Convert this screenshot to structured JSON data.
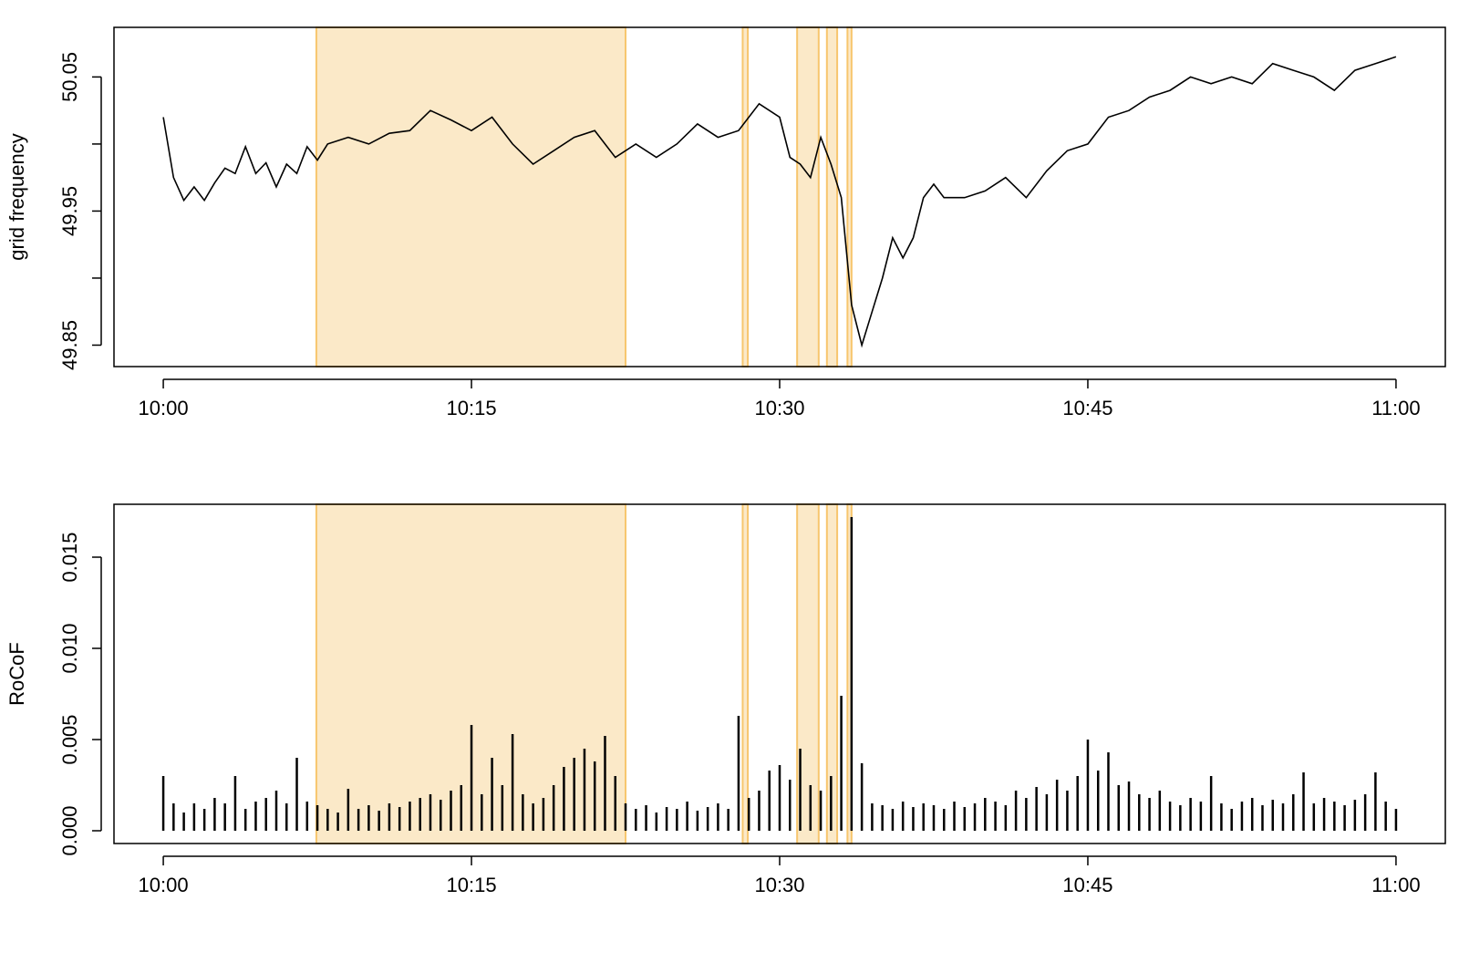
{
  "chart_data": [
    {
      "type": "line",
      "ylabel": "grid frequency",
      "x": [
        0,
        0.5,
        1,
        1.5,
        2,
        2.5,
        3,
        3.5,
        4,
        4.5,
        5,
        5.5,
        6,
        6.5,
        7,
        7.5,
        8,
        9,
        10,
        11,
        12,
        13,
        14,
        15,
        16,
        17,
        18,
        19,
        20,
        21,
        22,
        23,
        24,
        25,
        26,
        27,
        28,
        29,
        30,
        30.5,
        31,
        31.5,
        32,
        32.5,
        33,
        33.5,
        34,
        34.5,
        35,
        35.5,
        36,
        36.5,
        37,
        37.5,
        38,
        39,
        40,
        41,
        42,
        43,
        44,
        45,
        46,
        47,
        48,
        49,
        50,
        51,
        52,
        53,
        54,
        55,
        56,
        57,
        58,
        59,
        60
      ],
      "series": [
        {
          "color": "#000000",
          "values": [
            50.02,
            49.975,
            49.958,
            49.968,
            49.958,
            49.971,
            49.982,
            49.978,
            49.998,
            49.978,
            49.986,
            49.968,
            49.985,
            49.978,
            49.998,
            49.988,
            50.0,
            50.005,
            50.0,
            50.008,
            50.01,
            50.025,
            50.018,
            50.01,
            50.02,
            50.0,
            49.985,
            49.995,
            50.005,
            50.01,
            49.99,
            50.0,
            49.99,
            50.0,
            50.015,
            50.005,
            50.01,
            50.03,
            50.02,
            49.99,
            49.985,
            49.975,
            50.005,
            49.985,
            49.96,
            49.88,
            49.85,
            49.875,
            49.9,
            49.93,
            49.915,
            49.93,
            49.96,
            49.97,
            49.96,
            49.96,
            49.965,
            49.975,
            49.96,
            49.98,
            49.995,
            50.0,
            50.02,
            50.025,
            50.035,
            50.04,
            50.05,
            50.045,
            50.05,
            50.045,
            50.06,
            50.055,
            50.05,
            50.04,
            50.055,
            50.06,
            50.065
          ]
        }
      ],
      "xlim": [
        -2.4,
        62.4
      ],
      "xticks": [
        {
          "value": 0,
          "label": "10:00"
        },
        {
          "value": 15,
          "label": "10:15"
        },
        {
          "value": 30,
          "label": "10:30"
        },
        {
          "value": 45,
          "label": "10:45"
        },
        {
          "value": 60,
          "label": "11:00"
        }
      ],
      "ylim": [
        49.834,
        50.087
      ],
      "yticks": [
        49.85,
        49.95,
        50.05
      ],
      "minor_yticks": [
        49.9,
        50.0
      ],
      "highlights": {
        "color": "#fbe9c8",
        "edge_color": "#f7c66e",
        "ranges": [
          [
            7.45,
            22.5
          ],
          [
            28.2,
            28.45
          ],
          [
            30.85,
            31.9
          ],
          [
            32.3,
            32.8
          ],
          [
            33.3,
            33.5
          ]
        ]
      }
    },
    {
      "type": "bar",
      "ylabel": "RoCoF",
      "x": [
        0,
        0.5,
        1,
        1.5,
        2,
        2.5,
        3,
        3.5,
        4,
        4.5,
        5,
        5.5,
        6,
        6.5,
        7,
        7.5,
        8,
        8.5,
        9,
        9.5,
        10,
        10.5,
        11,
        11.5,
        12,
        12.5,
        13,
        13.5,
        14,
        14.5,
        15,
        15.5,
        16,
        16.5,
        17,
        17.5,
        18,
        18.5,
        19,
        19.5,
        20,
        20.5,
        21,
        21.5,
        22,
        22.5,
        23,
        23.5,
        24,
        24.5,
        25,
        25.5,
        26,
        26.5,
        27,
        27.5,
        28,
        28.5,
        29,
        29.5,
        30,
        30.5,
        31,
        31.5,
        32,
        32.5,
        33,
        33.5,
        34,
        34.5,
        35,
        35.5,
        36,
        36.5,
        37,
        37.5,
        38,
        38.5,
        39,
        39.5,
        40,
        40.5,
        41,
        41.5,
        42,
        42.5,
        43,
        43.5,
        44,
        44.5,
        45,
        45.5,
        46,
        46.5,
        47,
        47.5,
        48,
        48.5,
        49,
        49.5,
        50,
        50.5,
        51,
        51.5,
        52,
        52.5,
        53,
        53.5,
        54,
        54.5,
        55,
        55.5,
        56,
        56.5,
        57,
        57.5,
        58,
        58.5,
        59,
        59.5,
        60
      ],
      "series": [
        {
          "color": "#000000",
          "values": [
            0.003,
            0.0015,
            0.001,
            0.0015,
            0.0012,
            0.0018,
            0.0015,
            0.003,
            0.0012,
            0.0016,
            0.0018,
            0.0022,
            0.0015,
            0.004,
            0.0016,
            0.0014,
            0.0012,
            0.001,
            0.0023,
            0.0012,
            0.0014,
            0.0011,
            0.0015,
            0.0013,
            0.0016,
            0.0018,
            0.002,
            0.0017,
            0.0022,
            0.0025,
            0.0058,
            0.002,
            0.004,
            0.0025,
            0.0053,
            0.002,
            0.0015,
            0.0018,
            0.0025,
            0.0035,
            0.004,
            0.0045,
            0.0038,
            0.0052,
            0.003,
            0.0015,
            0.0012,
            0.0014,
            0.001,
            0.0013,
            0.0012,
            0.0016,
            0.0011,
            0.0013,
            0.0015,
            0.0012,
            0.0063,
            0.0018,
            0.0022,
            0.0033,
            0.0036,
            0.0028,
            0.0045,
            0.0025,
            0.0022,
            0.003,
            0.0074,
            0.0172,
            0.0037,
            0.0015,
            0.0014,
            0.0012,
            0.0016,
            0.0013,
            0.0015,
            0.0014,
            0.0012,
            0.0016,
            0.0013,
            0.0015,
            0.0018,
            0.0016,
            0.0014,
            0.0022,
            0.0018,
            0.0024,
            0.002,
            0.0028,
            0.0022,
            0.003,
            0.005,
            0.0033,
            0.0043,
            0.0025,
            0.0027,
            0.002,
            0.0018,
            0.0022,
            0.0016,
            0.0014,
            0.0018,
            0.0016,
            0.003,
            0.0015,
            0.0012,
            0.0016,
            0.0018,
            0.0014,
            0.0017,
            0.0015,
            0.002,
            0.0032,
            0.0015,
            0.0018,
            0.0016,
            0.0014,
            0.0017,
            0.002,
            0.0032,
            0.0016,
            0.0012
          ]
        }
      ],
      "xlim": [
        -2.4,
        62.4
      ],
      "xticks": [
        {
          "value": 0,
          "label": "10:00"
        },
        {
          "value": 15,
          "label": "10:15"
        },
        {
          "value": 30,
          "label": "10:30"
        },
        {
          "value": 45,
          "label": "10:45"
        },
        {
          "value": 60,
          "label": "11:00"
        }
      ],
      "ylim": [
        -0.0007,
        0.0179
      ],
      "yticks": [
        {
          "value": 0,
          "label": "0.000"
        },
        {
          "value": 0.005,
          "label": "0.005"
        },
        {
          "value": 0.01,
          "label": "0.010"
        },
        {
          "value": 0.015,
          "label": "0.015"
        }
      ],
      "highlights": {
        "color": "#fbe9c8",
        "edge_color": "#f7c66e",
        "ranges": [
          [
            7.45,
            22.5
          ],
          [
            28.2,
            28.45
          ],
          [
            30.85,
            31.9
          ],
          [
            32.3,
            32.8
          ],
          [
            33.3,
            33.5
          ]
        ]
      }
    }
  ]
}
